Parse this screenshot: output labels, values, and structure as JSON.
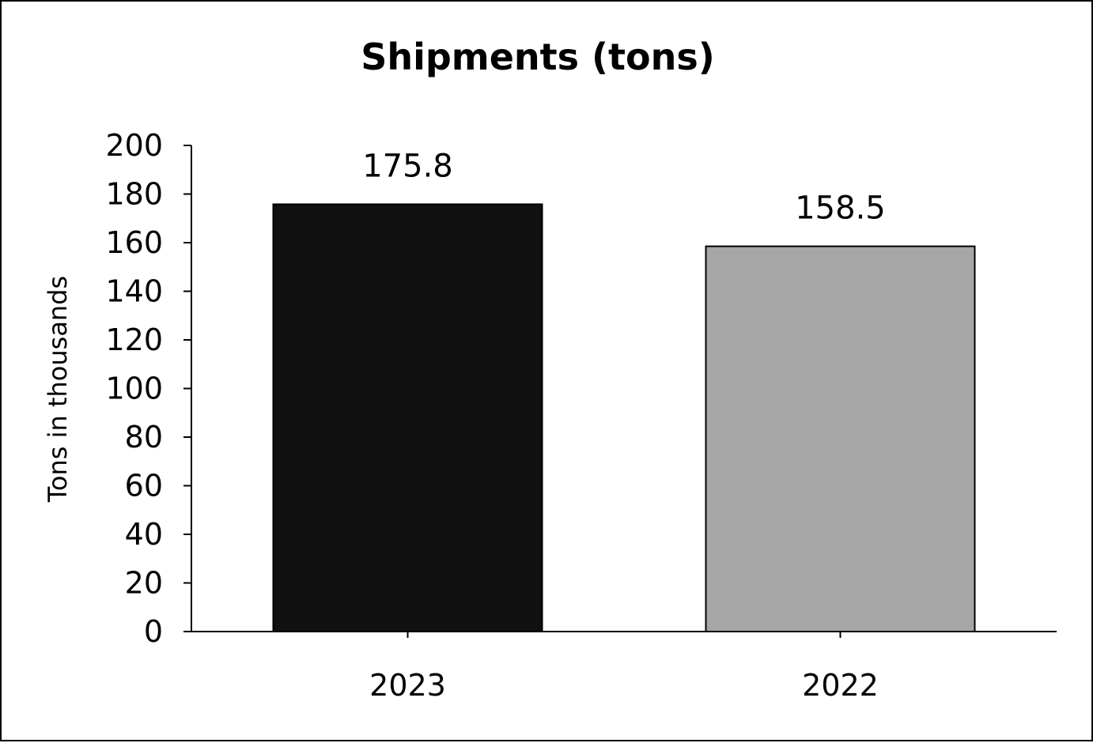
{
  "chart_data": {
    "type": "bar",
    "title": "Shipments (tons)",
    "xlabel": "",
    "ylabel": "Tons in thousands",
    "categories": [
      "2023",
      "2022"
    ],
    "values": [
      175.8,
      158.5
    ],
    "data_labels": [
      "175.8",
      "158.5"
    ],
    "bar_colors": [
      "#111111",
      "#a6a6a6"
    ],
    "ylim": [
      0,
      200
    ],
    "y_ticks": [
      0,
      20,
      40,
      60,
      80,
      100,
      120,
      140,
      160,
      180,
      200
    ],
    "y_tick_labels": [
      "0",
      "20",
      "40",
      "60",
      "80",
      "100",
      "120",
      "140",
      "160",
      "180",
      "200"
    ],
    "grid": false,
    "legend": "none"
  }
}
